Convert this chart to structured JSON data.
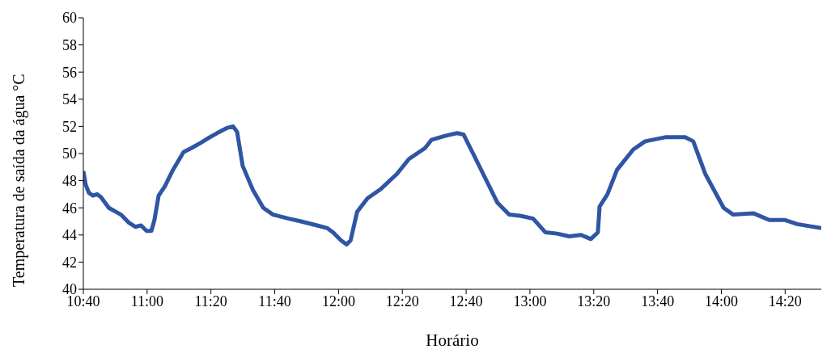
{
  "chart_data": {
    "type": "line",
    "xlabel": "Horário",
    "ylabel": "Temperatura de saída da água °C",
    "x": [
      10.667,
      10.679,
      10.696,
      10.717,
      10.738,
      10.758,
      10.8,
      10.863,
      10.905,
      10.938,
      10.968,
      10.997,
      11.022,
      11.038,
      11.06,
      11.093,
      11.135,
      11.19,
      11.231,
      11.281,
      11.315,
      11.365,
      11.42,
      11.449,
      11.47,
      11.499,
      11.553,
      11.607,
      11.658,
      11.741,
      11.804,
      11.888,
      11.942,
      11.971,
      12.013,
      12.042,
      12.063,
      12.097,
      12.151,
      12.222,
      12.305,
      12.368,
      12.452,
      12.485,
      12.557,
      12.619,
      12.653,
      12.703,
      12.766,
      12.829,
      12.891,
      12.954,
      13.017,
      13.08,
      13.142,
      13.205,
      13.267,
      13.318,
      13.355,
      13.364,
      13.405,
      13.455,
      13.54,
      13.602,
      13.707,
      13.811,
      13.853,
      13.916,
      14.012,
      14.062,
      14.167,
      14.25,
      14.333,
      14.397,
      14.522
    ],
    "series": [
      {
        "color": "#2f55a4",
        "values": [
          48.7,
          47.7,
          47.1,
          46.9,
          47.0,
          46.8,
          46.0,
          45.5,
          44.9,
          44.6,
          44.7,
          44.3,
          44.3,
          45.1,
          46.9,
          47.6,
          48.8,
          50.1,
          50.4,
          50.8,
          51.1,
          51.5,
          51.9,
          52.0,
          51.6,
          49.1,
          47.3,
          46.0,
          45.5,
          45.2,
          45.0,
          44.7,
          44.5,
          44.2,
          43.6,
          43.3,
          43.6,
          45.7,
          46.7,
          47.4,
          48.5,
          49.6,
          50.4,
          51.0,
          51.3,
          51.5,
          51.4,
          50.0,
          48.2,
          46.4,
          45.5,
          45.4,
          45.2,
          44.2,
          44.1,
          43.9,
          44.0,
          43.7,
          44.2,
          46.1,
          47.0,
          48.8,
          50.3,
          50.9,
          51.2,
          51.2,
          50.9,
          48.5,
          46.0,
          45.5,
          45.6,
          45.1,
          45.1,
          44.8,
          44.5
        ]
      }
    ],
    "xlim": [
      10.6667,
      14.5222
    ],
    "xticks": [
      {
        "value": 10.6667,
        "label": "10:40"
      },
      {
        "value": 11,
        "label": "11:00"
      },
      {
        "value": 11.3333,
        "label": "11:20"
      },
      {
        "value": 11.6667,
        "label": "11:40"
      },
      {
        "value": 12,
        "label": "12:00"
      },
      {
        "value": 12.3333,
        "label": "12:20"
      },
      {
        "value": 12.6667,
        "label": "12:40"
      },
      {
        "value": 13,
        "label": "13:00"
      },
      {
        "value": 13.3333,
        "label": "13:20"
      },
      {
        "value": 13.6667,
        "label": "13:40"
      },
      {
        "value": 14,
        "label": "14:00"
      },
      {
        "value": 14.3333,
        "label": "14:20"
      }
    ],
    "ylim": [
      40,
      60
    ],
    "yticks": [
      40,
      42,
      44,
      46,
      48,
      50,
      52,
      54,
      56,
      58,
      60
    ],
    "grid": false,
    "legend": false,
    "marker": "none",
    "line_style": "solid"
  }
}
